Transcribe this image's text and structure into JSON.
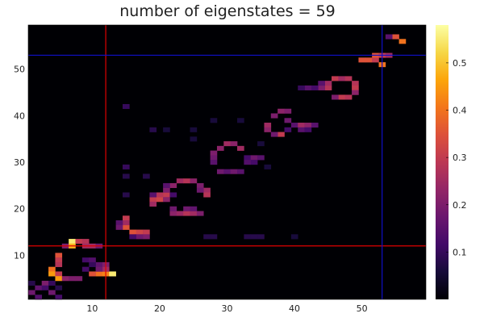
{
  "chart_data": {
    "type": "heatmap",
    "title": "number of eigenstates = 59",
    "xlabel": "",
    "ylabel": "",
    "xlim": [
      0.5,
      59.5
    ],
    "ylim": [
      0.5,
      59.5
    ],
    "x_ticks": [
      10,
      20,
      30,
      40,
      50
    ],
    "y_ticks": [
      10,
      20,
      30,
      40,
      50
    ],
    "grid": false,
    "legend": "colorbar-right",
    "colormap": "inferno",
    "colorbar": {
      "min": 0,
      "max": 0.58,
      "ticks": [
        0.1,
        0.2,
        0.3,
        0.4,
        0.5
      ],
      "tick_labels": [
        "0.1",
        "0.2",
        "0.3",
        "0.4",
        "0.5"
      ]
    },
    "reference_lines": [
      {
        "orientation": "vertical",
        "at": 12,
        "color": "#e00000"
      },
      {
        "orientation": "horizontal",
        "at": 12,
        "color": "#e00000"
      },
      {
        "orientation": "vertical",
        "at": 53,
        "color": "#1010c8"
      },
      {
        "orientation": "horizontal",
        "at": 53,
        "color": "#1010c8"
      }
    ],
    "colors": {
      "background": "#000004",
      "red_line": "#e00000",
      "blue_line": "#1010c8"
    },
    "cells_note": "cells listed as [column, row, value]; all other cells approximately 0.01",
    "cells": [
      [
        1,
        2,
        0.18
      ],
      [
        2,
        3,
        0.16
      ],
      [
        3,
        4,
        0.2
      ],
      [
        3,
        3,
        0.12
      ],
      [
        2,
        1,
        0.14
      ],
      [
        4,
        2,
        0.18
      ],
      [
        5,
        1,
        0.12
      ],
      [
        4,
        4,
        0.1
      ],
      [
        1,
        4,
        0.08
      ],
      [
        5,
        3,
        0.08
      ],
      [
        6,
        12,
        0.2
      ],
      [
        7,
        13,
        0.55
      ],
      [
        7,
        12,
        0.48
      ],
      [
        8,
        13,
        0.3
      ],
      [
        9,
        13,
        0.28
      ],
      [
        9,
        12,
        0.25
      ],
      [
        10,
        12,
        0.25
      ],
      [
        11,
        12,
        0.18
      ],
      [
        5,
        10,
        0.35
      ],
      [
        5,
        9,
        0.3
      ],
      [
        4,
        7,
        0.4
      ],
      [
        5,
        8,
        0.28
      ],
      [
        4,
        6,
        0.45
      ],
      [
        5,
        6,
        0.3
      ],
      [
        5,
        5,
        0.45
      ],
      [
        6,
        5,
        0.22
      ],
      [
        7,
        5,
        0.2
      ],
      [
        8,
        5,
        0.2
      ],
      [
        9,
        9,
        0.12
      ],
      [
        10,
        9,
        0.14
      ],
      [
        11,
        8,
        0.16
      ],
      [
        12,
        8,
        0.2
      ],
      [
        10,
        8,
        0.1
      ],
      [
        11,
        6,
        0.4
      ],
      [
        12,
        6,
        0.42
      ],
      [
        13,
        6,
        0.55
      ],
      [
        12,
        7,
        0.25
      ],
      [
        11,
        7,
        0.18
      ],
      [
        10,
        6,
        0.35
      ],
      [
        9,
        7,
        0.12
      ],
      [
        15,
        18,
        0.3
      ],
      [
        15,
        16,
        0.35
      ],
      [
        15,
        17,
        0.25
      ],
      [
        14,
        17,
        0.15
      ],
      [
        14,
        16,
        0.18
      ],
      [
        16,
        15,
        0.35
      ],
      [
        17,
        15,
        0.32
      ],
      [
        18,
        15,
        0.3
      ],
      [
        18,
        14,
        0.2
      ],
      [
        17,
        14,
        0.18
      ],
      [
        16,
        14,
        0.12
      ],
      [
        19,
        22,
        0.3
      ],
      [
        19,
        21,
        0.25
      ],
      [
        20,
        22,
        0.32
      ],
      [
        20,
        23,
        0.28
      ],
      [
        21,
        23,
        0.3
      ],
      [
        21,
        22,
        0.22
      ],
      [
        19,
        23,
        0.15
      ],
      [
        22,
        23,
        0.12
      ],
      [
        22,
        19,
        0.22
      ],
      [
        23,
        19,
        0.24
      ],
      [
        24,
        19,
        0.28
      ],
      [
        25,
        19,
        0.25
      ],
      [
        26,
        19,
        0.2
      ],
      [
        22,
        20,
        0.18
      ],
      [
        24,
        20,
        0.18
      ],
      [
        25,
        20,
        0.16
      ],
      [
        22,
        25,
        0.22
      ],
      [
        23,
        26,
        0.25
      ],
      [
        24,
        26,
        0.28
      ],
      [
        25,
        26,
        0.22
      ],
      [
        26,
        25,
        0.2
      ],
      [
        27,
        24,
        0.25
      ],
      [
        27,
        23,
        0.28
      ],
      [
        26,
        24,
        0.18
      ],
      [
        21,
        24,
        0.2
      ],
      [
        21,
        25,
        0.15
      ],
      [
        29,
        33,
        0.22
      ],
      [
        30,
        34,
        0.25
      ],
      [
        31,
        34,
        0.22
      ],
      [
        32,
        33,
        0.25
      ],
      [
        28,
        32,
        0.2
      ],
      [
        28,
        31,
        0.18
      ],
      [
        28,
        30,
        0.15
      ],
      [
        29,
        28,
        0.18
      ],
      [
        30,
        28,
        0.15
      ],
      [
        31,
        28,
        0.18
      ],
      [
        32,
        28,
        0.15
      ],
      [
        33,
        31,
        0.12
      ],
      [
        34,
        31,
        0.18
      ],
      [
        35,
        31,
        0.15
      ],
      [
        34,
        30,
        0.12
      ],
      [
        33,
        30,
        0.14
      ],
      [
        36,
        38,
        0.25
      ],
      [
        36,
        37,
        0.22
      ],
      [
        37,
        40,
        0.2
      ],
      [
        38,
        41,
        0.22
      ],
      [
        39,
        41,
        0.2
      ],
      [
        39,
        39,
        0.18
      ],
      [
        38,
        36,
        0.3
      ],
      [
        37,
        36,
        0.18
      ],
      [
        39,
        37,
        0.12
      ],
      [
        40,
        38,
        0.15
      ],
      [
        41,
        38,
        0.25
      ],
      [
        42,
        38,
        0.22
      ],
      [
        43,
        38,
        0.15
      ],
      [
        41,
        37,
        0.15
      ],
      [
        42,
        37,
        0.12
      ],
      [
        45,
        46,
        0.28
      ],
      [
        45,
        47,
        0.25
      ],
      [
        46,
        48,
        0.3
      ],
      [
        47,
        48,
        0.25
      ],
      [
        48,
        48,
        0.28
      ],
      [
        49,
        47,
        0.28
      ],
      [
        49,
        46,
        0.3
      ],
      [
        47,
        44,
        0.3
      ],
      [
        48,
        44,
        0.28
      ],
      [
        46,
        44,
        0.2
      ],
      [
        49,
        45,
        0.22
      ],
      [
        44,
        46,
        0.2
      ],
      [
        44,
        47,
        0.15
      ],
      [
        42,
        46,
        0.15
      ],
      [
        43,
        46,
        0.12
      ],
      [
        41,
        46,
        0.1
      ],
      [
        50,
        52,
        0.35
      ],
      [
        51,
        52,
        0.35
      ],
      [
        52,
        52,
        0.3
      ],
      [
        52,
        53,
        0.35
      ],
      [
        53,
        53,
        0.3
      ],
      [
        53,
        51,
        0.4
      ],
      [
        54,
        53,
        0.25
      ],
      [
        55,
        57,
        0.35
      ],
      [
        56,
        56,
        0.4
      ],
      [
        54,
        57,
        0.15
      ],
      [
        15,
        42,
        0.1
      ],
      [
        15,
        29,
        0.1
      ],
      [
        15,
        27,
        0.08
      ],
      [
        15,
        23,
        0.08
      ],
      [
        18,
        27,
        0.08
      ],
      [
        19,
        37,
        0.08
      ],
      [
        21,
        37,
        0.06
      ],
      [
        25,
        37,
        0.06
      ],
      [
        25,
        35,
        0.06
      ],
      [
        28,
        39,
        0.06
      ],
      [
        32,
        39,
        0.06
      ],
      [
        35,
        34,
        0.06
      ],
      [
        36,
        29,
        0.06
      ],
      [
        33,
        14,
        0.08
      ],
      [
        34,
        14,
        0.08
      ],
      [
        35,
        14,
        0.08
      ],
      [
        27,
        14,
        0.08
      ],
      [
        28,
        14,
        0.08
      ],
      [
        40,
        14,
        0.06
      ]
    ]
  }
}
